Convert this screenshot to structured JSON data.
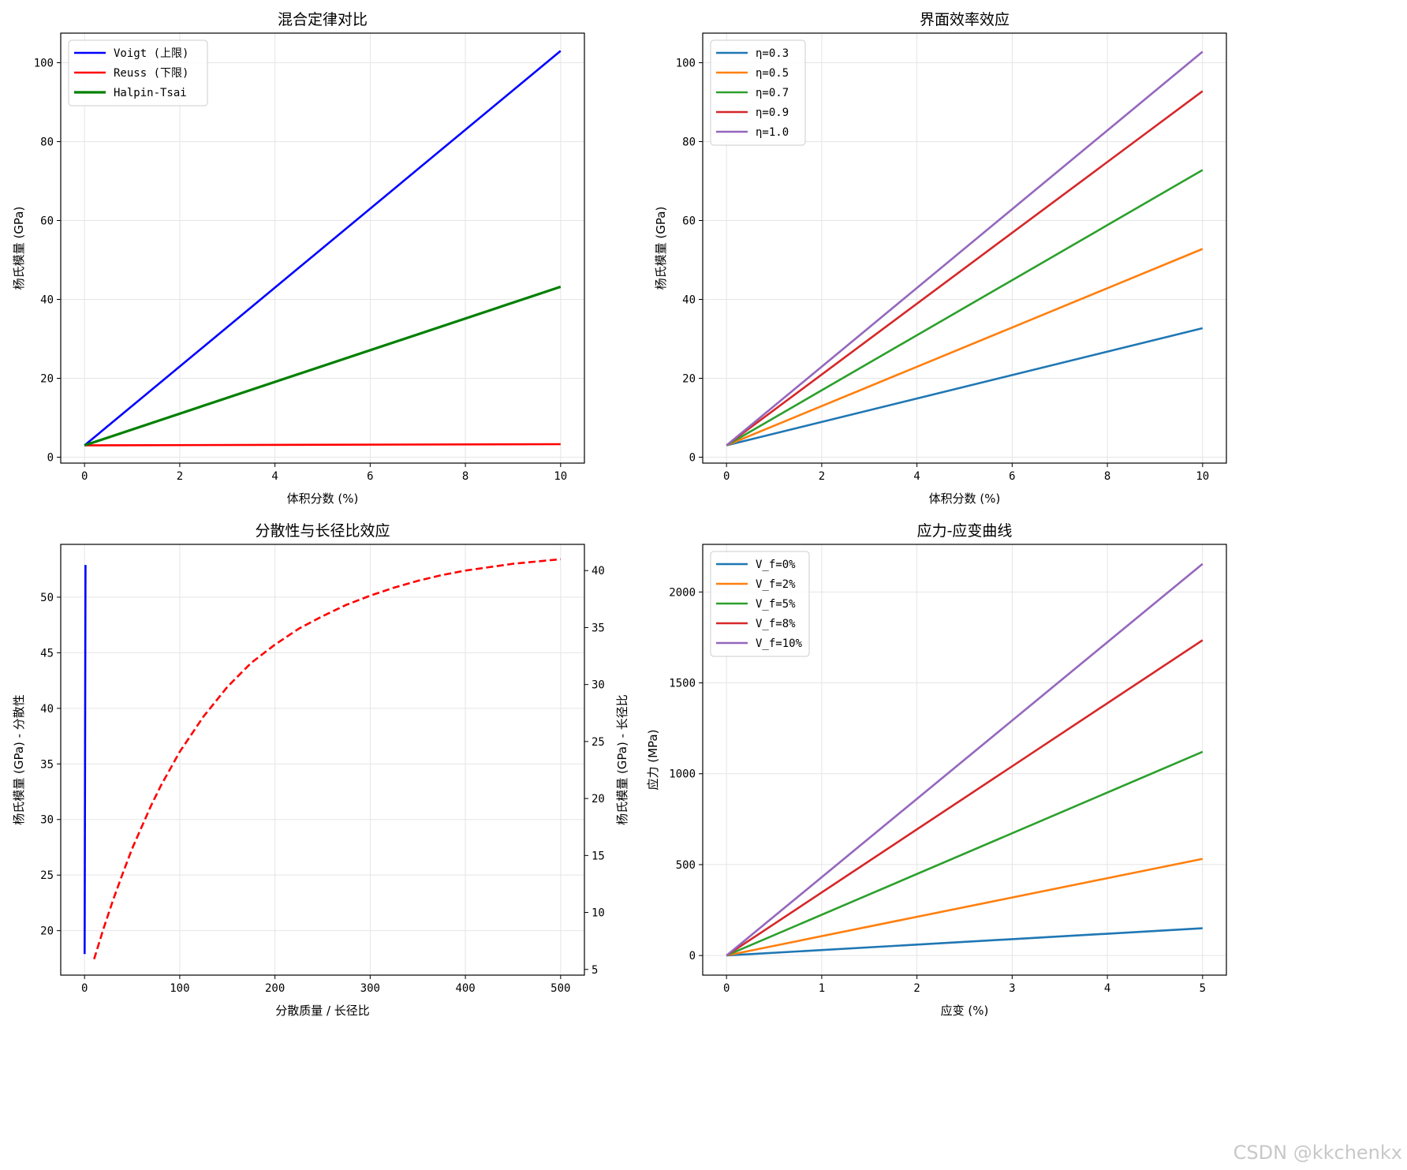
{
  "watermark": "CSDN @kkchenkx",
  "colors": {
    "blue": "#0000ff",
    "red": "#ff0000",
    "green": "#008000",
    "c0": "#1f77b4",
    "c1": "#ff7f0e",
    "c2": "#2ca02c",
    "c3": "#d62728",
    "c4": "#9467bd",
    "grid": "#e5e5e5"
  },
  "chart_data": [
    {
      "type": "line",
      "title": "混合定律对比",
      "xlabel": "体积分数 (%)",
      "ylabel": "杨氏模量 (GPa)",
      "xlim": [
        -0.5,
        10.5
      ],
      "ylim": [
        -1.5,
        107.5
      ],
      "xticks": [
        0,
        2,
        4,
        6,
        8,
        10
      ],
      "yticks": [
        0,
        20,
        40,
        60,
        80,
        100
      ],
      "grid": true,
      "legend_position": "upper-left",
      "series": [
        {
          "name": "Voigt (上限)",
          "color": "#0000ff",
          "width": "normal",
          "x": [
            0,
            10
          ],
          "y": [
            3,
            103
          ]
        },
        {
          "name": "Reuss (下限)",
          "color": "#ff0000",
          "width": "normal",
          "x": [
            0,
            10
          ],
          "y": [
            3,
            3.3
          ]
        },
        {
          "name": "Halpin-Tsai",
          "color": "#008000",
          "width": "bold",
          "x": [
            0,
            10
          ],
          "y": [
            3,
            43.2
          ]
        }
      ]
    },
    {
      "type": "line",
      "title": "界面效率效应",
      "xlabel": "体积分数 (%)",
      "ylabel": "杨氏模量 (GPa)",
      "xlim": [
        -0.5,
        10.5
      ],
      "ylim": [
        -1.5,
        107.5
      ],
      "xticks": [
        0,
        2,
        4,
        6,
        8,
        10
      ],
      "yticks": [
        0,
        20,
        40,
        60,
        80,
        100
      ],
      "grid": true,
      "legend_position": "upper-left",
      "series": [
        {
          "name": "η=0.3",
          "color": "#1f77b4",
          "width": "normal",
          "x": [
            0,
            10
          ],
          "y": [
            3,
            32.7
          ]
        },
        {
          "name": "η=0.5",
          "color": "#ff7f0e",
          "width": "normal",
          "x": [
            0,
            10
          ],
          "y": [
            3,
            52.8
          ]
        },
        {
          "name": "η=0.7",
          "color": "#2ca02c",
          "width": "normal",
          "x": [
            0,
            10
          ],
          "y": [
            3,
            72.8
          ]
        },
        {
          "name": "η=0.9",
          "color": "#d62728",
          "width": "normal",
          "x": [
            0,
            10
          ],
          "y": [
            3,
            92.8
          ]
        },
        {
          "name": "η=1.0",
          "color": "#9467bd",
          "width": "normal",
          "x": [
            0,
            10
          ],
          "y": [
            3,
            102.8
          ]
        }
      ]
    },
    {
      "type": "line",
      "title": "分散性与长径比效应",
      "xlabel": "分散质量 / 长径比",
      "ylabel": "杨氏模量 (GPa) - 分散性",
      "ylabel_right": "杨氏模量 (GPa) - 长径比",
      "ylabel_color": "#0000ff",
      "ylabel_right_color": "#ff0000",
      "xlim": [
        -25,
        525
      ],
      "ylim": [
        16,
        54.75
      ],
      "ylim_right": [
        4.5,
        42.3
      ],
      "xticks": [
        0,
        100,
        200,
        300,
        400,
        500
      ],
      "yticks": [
        20,
        25,
        30,
        35,
        40,
        45,
        50
      ],
      "yticks_right": [
        5,
        10,
        15,
        20,
        25,
        30,
        35,
        40
      ],
      "grid": true,
      "series": [
        {
          "name": "分散性",
          "axis": "left",
          "style": "solid",
          "color": "#0000ff",
          "x": [
            0.1,
            1
          ],
          "y": [
            17.9,
            52.9
          ]
        },
        {
          "name": "长径比",
          "axis": "right",
          "style": "dashed",
          "color": "#ff0000",
          "x": [
            10,
            20,
            30,
            40,
            50,
            60,
            70,
            80,
            90,
            100,
            125,
            150,
            175,
            200,
            225,
            250,
            275,
            300,
            325,
            350,
            375,
            400,
            425,
            450,
            475,
            500
          ],
          "y": [
            5.9,
            8.6,
            11.1,
            13.4,
            15.6,
            17.5,
            19.4,
            21.1,
            22.6,
            24.1,
            27.2,
            29.8,
            31.9,
            33.5,
            34.9,
            36.0,
            37.0,
            37.8,
            38.5,
            39.1,
            39.6,
            40.0,
            40.3,
            40.6,
            40.8,
            41.0
          ]
        }
      ]
    },
    {
      "type": "line",
      "title": "应力-应变曲线",
      "xlabel": "应变 (%)",
      "ylabel": "应力 (MPa)",
      "xlim": [
        -0.25,
        5.25
      ],
      "ylim": [
        -108,
        2262
      ],
      "xticks": [
        0,
        1,
        2,
        3,
        4,
        5
      ],
      "yticks": [
        0,
        500,
        1000,
        1500,
        2000
      ],
      "grid": true,
      "legend_position": "upper-left",
      "series": [
        {
          "name": "V_f=0%",
          "color": "#1f77b4",
          "width": "normal",
          "x": [
            0,
            5
          ],
          "y": [
            0,
            150
          ]
        },
        {
          "name": "V_f=2%",
          "color": "#ff7f0e",
          "width": "normal",
          "x": [
            0,
            5
          ],
          "y": [
            0,
            532
          ]
        },
        {
          "name": "V_f=5%",
          "color": "#2ca02c",
          "width": "normal",
          "x": [
            0,
            5
          ],
          "y": [
            0,
            1121
          ]
        },
        {
          "name": "V_f=8%",
          "color": "#d62728",
          "width": "normal",
          "x": [
            0,
            5
          ],
          "y": [
            0,
            1735
          ]
        },
        {
          "name": "V_f=10%",
          "color": "#9467bd",
          "width": "normal",
          "x": [
            0,
            5
          ],
          "y": [
            0,
            2155
          ]
        }
      ]
    }
  ]
}
